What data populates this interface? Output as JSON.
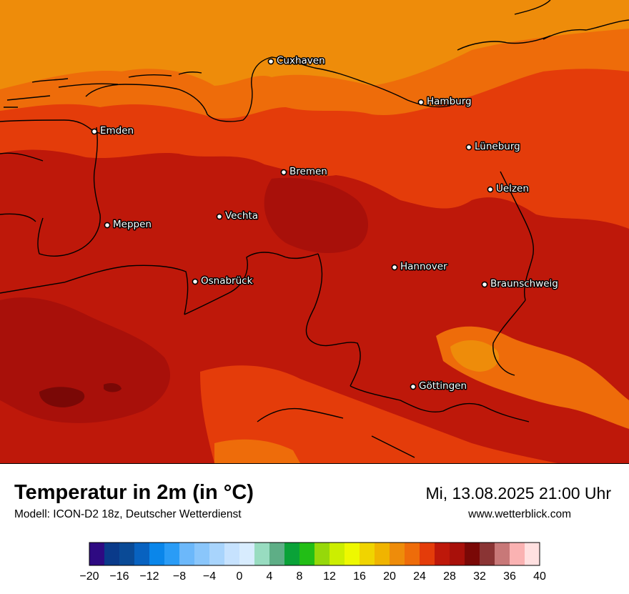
{
  "map": {
    "cities": [
      {
        "id": "cuxhaven",
        "name": "Cuxhaven"
      },
      {
        "id": "hamburg",
        "name": "Hamburg"
      },
      {
        "id": "emden",
        "name": "Emden"
      },
      {
        "id": "lueneburg",
        "name": "Lüneburg"
      },
      {
        "id": "bremen",
        "name": "Bremen"
      },
      {
        "id": "uelzen",
        "name": "Uelzen"
      },
      {
        "id": "vechta",
        "name": "Vechta"
      },
      {
        "id": "meppen",
        "name": "Meppen"
      },
      {
        "id": "hannover",
        "name": "Hannover"
      },
      {
        "id": "osnabrueck",
        "name": "Osnabrück"
      },
      {
        "id": "braunschweig",
        "name": "Braunschweig"
      },
      {
        "id": "goettingen",
        "name": "Göttingen"
      }
    ]
  },
  "footer": {
    "title": "Temperatur in 2m (in °C)",
    "subtitle": "Modell: ICON-D2 18z, Deutscher Wetterdienst",
    "datetime": "Mi, 13.08.2025 21:00 Uhr",
    "source": "www.wetterblick.com"
  },
  "colorscale": {
    "min": -20,
    "max": 40,
    "step": 2,
    "tick_labels": [
      "−20",
      "−16",
      "−12",
      "−8",
      "−4",
      "0",
      "4",
      "8",
      "12",
      "16",
      "20",
      "24",
      "28",
      "32",
      "36",
      "40"
    ],
    "colors": [
      "#2e0a82",
      "#0a3a8a",
      "#0a4a96",
      "#0862c0",
      "#0a86ea",
      "#2a9cf6",
      "#6cb8fa",
      "#8ac6fb",
      "#a8d4fc",
      "#c6e2fe",
      "#d8ecfe",
      "#98dcc0",
      "#5eae86",
      "#0aa238",
      "#22be16",
      "#96d80a",
      "#ccee00",
      "#eef800",
      "#f0d400",
      "#f0b400",
      "#ee8c0a",
      "#ee6c0a",
      "#e43c0a",
      "#be180a",
      "#a8100a",
      "#7a0806",
      "#8a3434",
      "#c87878",
      "#fab2b2",
      "#ffe0e0"
    ]
  }
}
